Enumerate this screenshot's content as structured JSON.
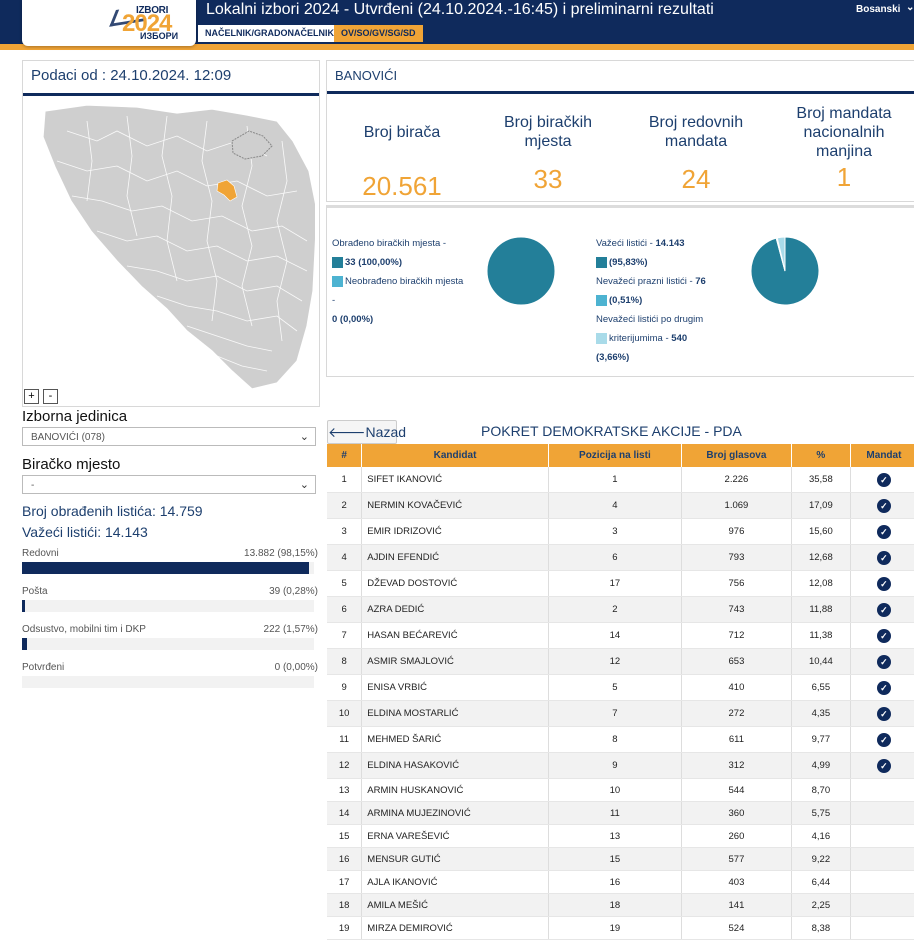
{
  "header": {
    "logo_line1": "IZBORI",
    "logo_year": "2024",
    "logo_line3": "ИЗБОРИ",
    "title": "Lokalni izbori 2024 - Utvrđeni (24.10.2024.-16:45) i preliminarni rezultati",
    "language": "Bosanski",
    "tabs": [
      "NAČELNIK/GRADONAČELNIK",
      "OV/SO/GV/SG/SD"
    ]
  },
  "left": {
    "data_as_of": "Podaci od : 24.10.2024. 12:09",
    "zoom_in": "+",
    "zoom_out": "-",
    "electoral_unit_label": "Izborna jedinica",
    "electoral_unit_value": "BANOVIĆI (078)",
    "polling_station_label": "Biračko mjesto",
    "polling_station_value": "-",
    "processed_ballots": "Broj obrađenih listića: 14.759",
    "valid_ballots": "Važeći listići: 14.143",
    "progress": [
      {
        "label": "Redovni",
        "value": "13.882 (98,15%)",
        "fraction": 0.9815
      },
      {
        "label": "Pošta",
        "value": "39 (0,28%)",
        "fraction": 0.0028
      },
      {
        "label": "Odsustvo, mobilni tim i DKP",
        "value": "222 (1,57%)",
        "fraction": 0.0157
      },
      {
        "label": "Potvrđeni",
        "value": "0 (0,00%)",
        "fraction": 0
      }
    ]
  },
  "municipality": {
    "name": "BANOVIĆI",
    "kpis": [
      {
        "title": "Broj birača",
        "value": "20.561"
      },
      {
        "title": "Broj biračkih mjesta",
        "value": "33"
      },
      {
        "title": "Broj redovnih mandata",
        "value": "24"
      },
      {
        "title": "Broj mandata nacionalnih manjina",
        "value": "1"
      }
    ],
    "pie1": {
      "legend": [
        {
          "text": "Obrađeno biračkih mjesta -",
          "bold": "33 (100,00%)",
          "color": "#237f99",
          "fraction": 1.0
        },
        {
          "text": "Neobrađeno biračkih mjesta -",
          "bold": "0 (0,00%)",
          "color": "#4db3d1",
          "fraction": 0.0
        }
      ]
    },
    "pie2": {
      "legend": [
        {
          "text": "Važeći listići -",
          "bold": "14.143",
          "bold2": "(95,83%)",
          "color": "#237f99",
          "fraction": 0.9583
        },
        {
          "text": "Nevažeći prazni listići -",
          "bold": "76",
          "bold2": "(0,51%)",
          "color": "#4db3d1",
          "fraction": 0.0051
        },
        {
          "text": "Nevažeći listići po drugim",
          "text2": "kriterijumima -",
          "bold": "540",
          "bold2": "(3,66%)",
          "color": "#a9dbe9",
          "fraction": 0.0366
        }
      ]
    }
  },
  "results": {
    "back_label": "Nazad",
    "party": "POKRET DEMOKRATSKE AKCIJE - PDA",
    "columns": [
      "#",
      "Kandidat",
      "Pozicija na listi",
      "Broj glasova",
      "%",
      "Mandat"
    ],
    "rows": [
      {
        "n": "1",
        "name": "SIFET IKANOVIĆ",
        "pos": "1",
        "votes": "2.226",
        "pct": "35,58",
        "mandate": true
      },
      {
        "n": "2",
        "name": "NERMIN KOVAČEVIĆ",
        "pos": "4",
        "votes": "1.069",
        "pct": "17,09",
        "mandate": true
      },
      {
        "n": "3",
        "name": "EMIR IDRIZOVIĆ",
        "pos": "3",
        "votes": "976",
        "pct": "15,60",
        "mandate": true
      },
      {
        "n": "4",
        "name": "AJDIN EFENDIĆ",
        "pos": "6",
        "votes": "793",
        "pct": "12,68",
        "mandate": true
      },
      {
        "n": "5",
        "name": "DŽEVAD DOSTOVIĆ",
        "pos": "17",
        "votes": "756",
        "pct": "12,08",
        "mandate": true
      },
      {
        "n": "6",
        "name": "AZRA DEDIĆ",
        "pos": "2",
        "votes": "743",
        "pct": "11,88",
        "mandate": true
      },
      {
        "n": "7",
        "name": "HASAN BEĆAREVIĆ",
        "pos": "14",
        "votes": "712",
        "pct": "11,38",
        "mandate": true
      },
      {
        "n": "8",
        "name": "ASMIR SMAJLOVIĆ",
        "pos": "12",
        "votes": "653",
        "pct": "10,44",
        "mandate": true
      },
      {
        "n": "9",
        "name": "ENISA VRBIĆ",
        "pos": "5",
        "votes": "410",
        "pct": "6,55",
        "mandate": true
      },
      {
        "n": "10",
        "name": "ELDINA MOSTARLIĆ",
        "pos": "7",
        "votes": "272",
        "pct": "4,35",
        "mandate": true
      },
      {
        "n": "11",
        "name": "MEHMED ŠARIĆ",
        "pos": "8",
        "votes": "611",
        "pct": "9,77",
        "mandate": true
      },
      {
        "n": "12",
        "name": "ELDINA HASAKOVIĆ",
        "pos": "9",
        "votes": "312",
        "pct": "4,99",
        "mandate": true
      },
      {
        "n": "13",
        "name": "ARMIN HUSKANOVIĆ",
        "pos": "10",
        "votes": "544",
        "pct": "8,70",
        "mandate": false
      },
      {
        "n": "14",
        "name": "ARMINA MUJEZINOVIĆ",
        "pos": "11",
        "votes": "360",
        "pct": "5,75",
        "mandate": false
      },
      {
        "n": "15",
        "name": "ERNA VAREŠEVIĆ",
        "pos": "13",
        "votes": "260",
        "pct": "4,16",
        "mandate": false
      },
      {
        "n": "16",
        "name": "MENSUR GUTIĆ",
        "pos": "15",
        "votes": "577",
        "pct": "9,22",
        "mandate": false
      },
      {
        "n": "17",
        "name": "AJLA IKANOVIĆ",
        "pos": "16",
        "votes": "403",
        "pct": "6,44",
        "mandate": false
      },
      {
        "n": "18",
        "name": "AMILA MEŠIĆ",
        "pos": "18",
        "votes": "141",
        "pct": "2,25",
        "mandate": false
      },
      {
        "n": "19",
        "name": "MIRZA DEMIROVIĆ",
        "pos": "19",
        "votes": "524",
        "pct": "8,38",
        "mandate": false
      }
    ]
  }
}
